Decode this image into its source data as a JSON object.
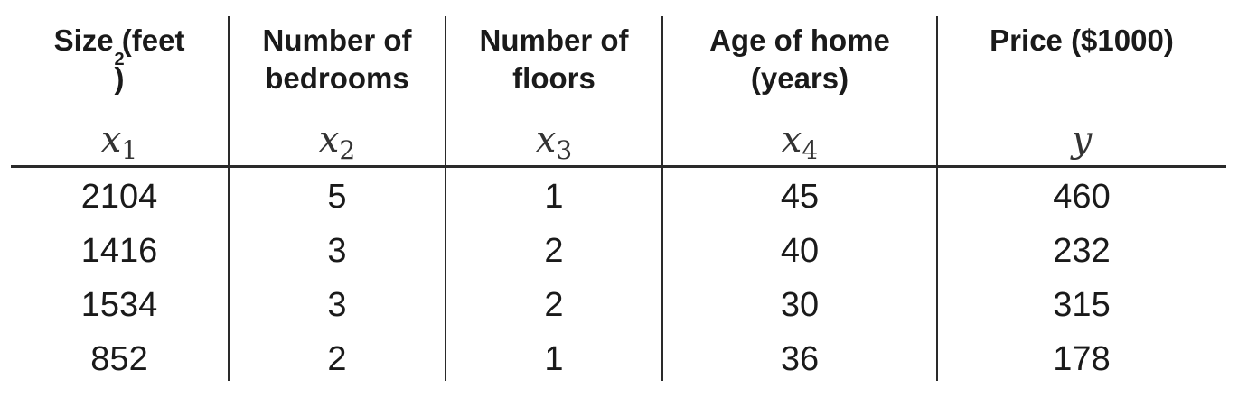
{
  "table": {
    "columns": [
      {
        "header_lines": [
          "Size (feet",
          ""
        ],
        "header_sup": "2",
        "header_suffix": ")",
        "var_base": "x",
        "var_sub": "1"
      },
      {
        "header_lines": [
          "Number of",
          "bedrooms"
        ],
        "var_base": "x",
        "var_sub": "2"
      },
      {
        "header_lines": [
          "Number of",
          "floors"
        ],
        "var_base": "x",
        "var_sub": "3"
      },
      {
        "header_lines": [
          "Age of home",
          "(years)"
        ],
        "var_base": "x",
        "var_sub": "4"
      },
      {
        "header_lines": [
          "Price ($1000)",
          ""
        ],
        "var_base": "y",
        "var_sub": ""
      }
    ],
    "rows": [
      [
        "2104",
        "5",
        "1",
        "45",
        "460"
      ],
      [
        "1416",
        "3",
        "2",
        "40",
        "232"
      ],
      [
        "1534",
        "3",
        "2",
        "30",
        "315"
      ],
      [
        "852",
        "2",
        "1",
        "36",
        "178"
      ]
    ]
  }
}
